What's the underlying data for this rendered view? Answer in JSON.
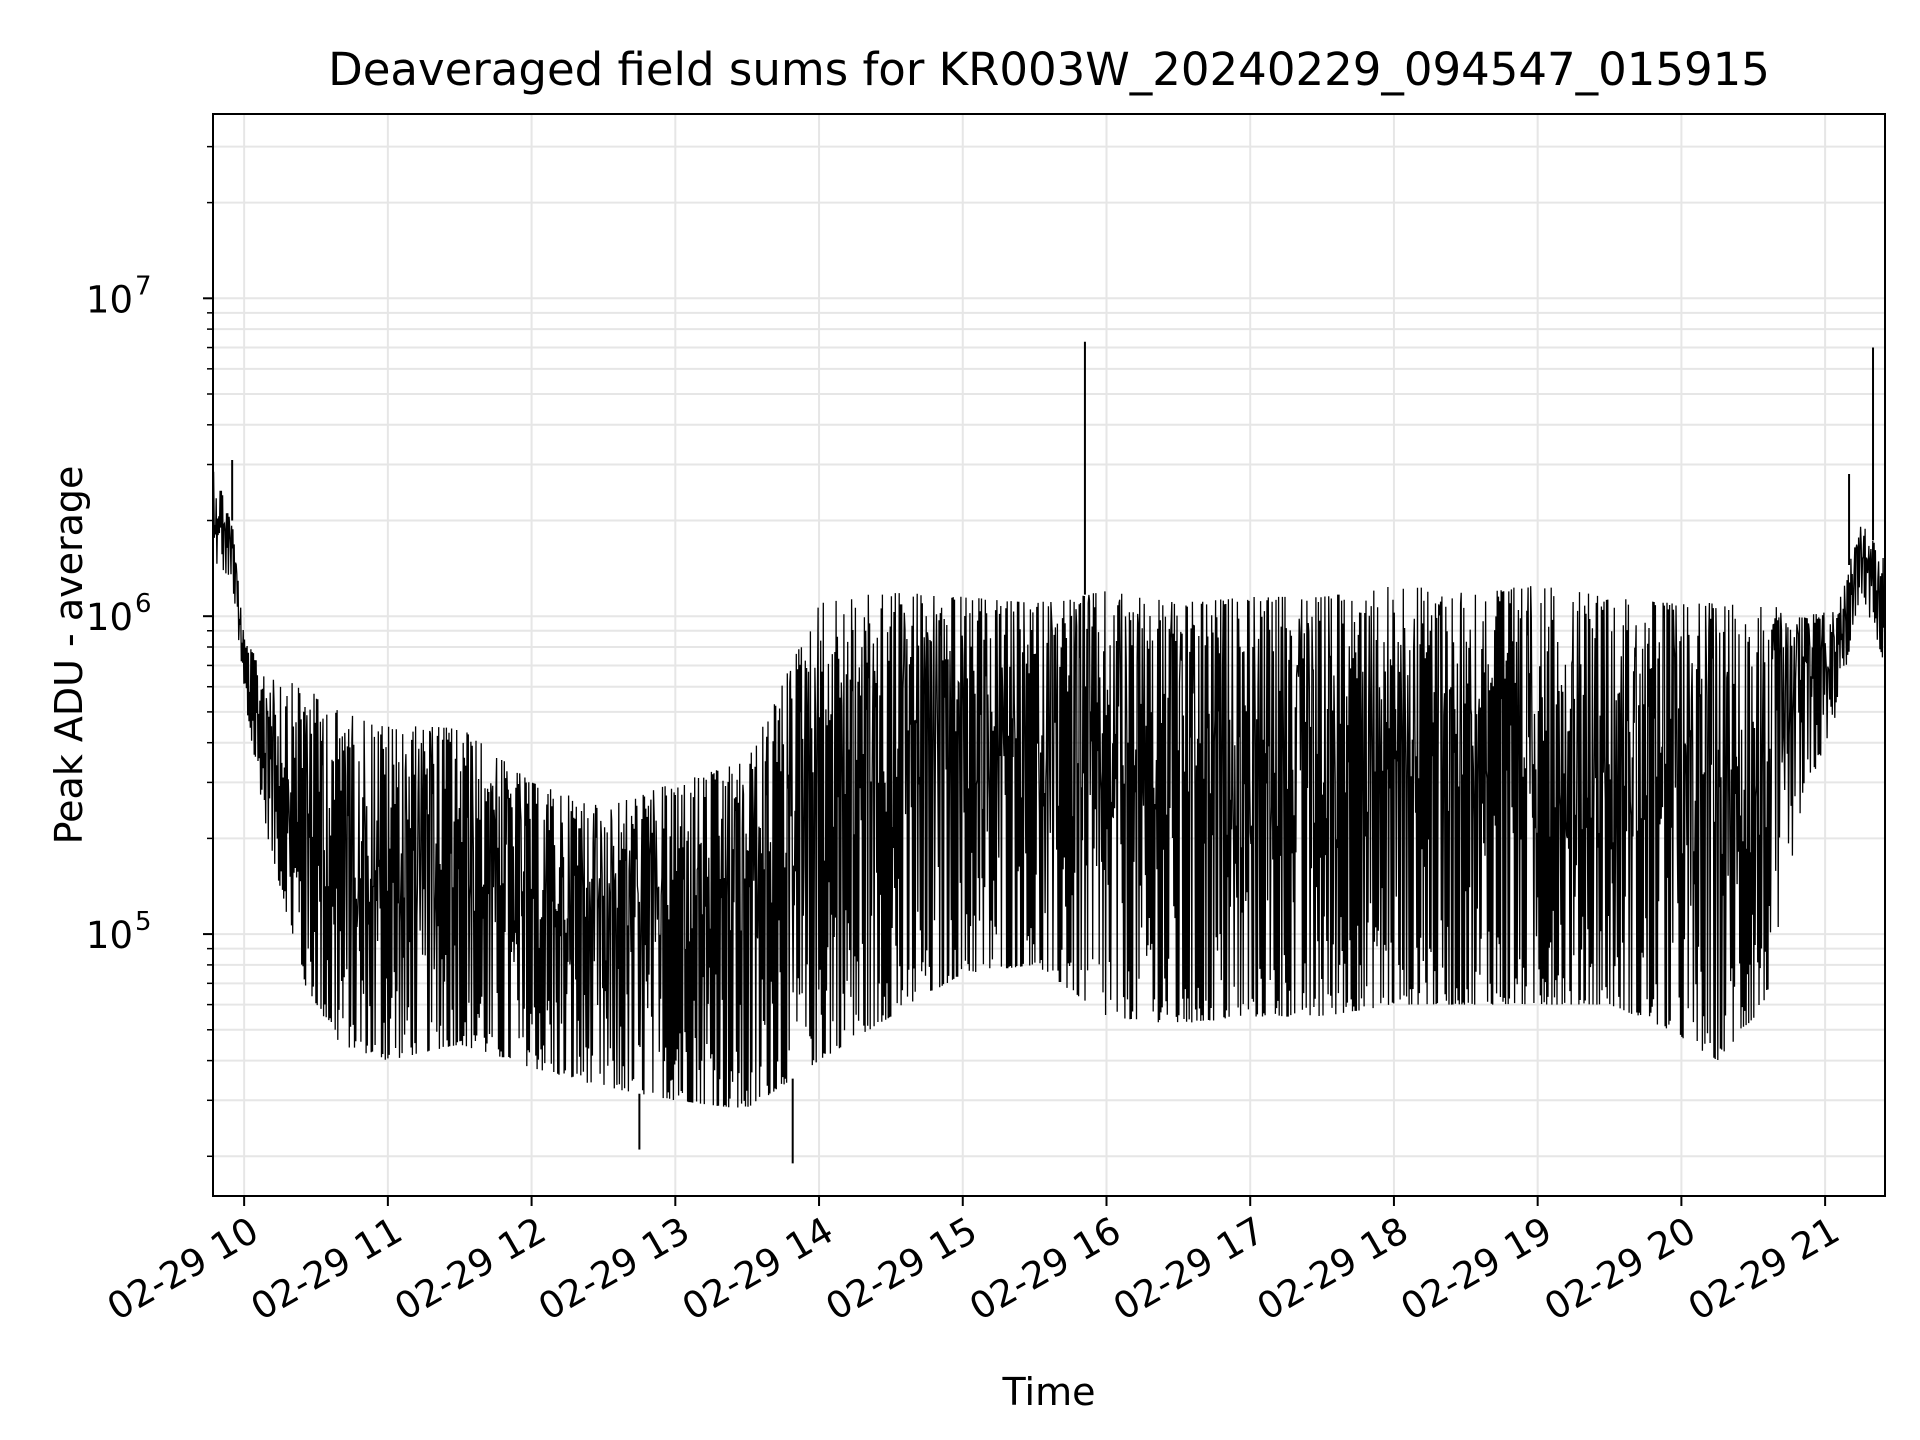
{
  "chart_data": {
    "type": "line",
    "title": "Deaveraged field sums for KR003W_20240229_094547_015915",
    "xlabel": "Time",
    "ylabel": "Peak ADU - average",
    "x_scale": "time",
    "y_scale": "log",
    "xlim": [
      "2024-02-29T09:47",
      "2024-02-29T21:25"
    ],
    "ylim": [
      15000,
      38000000
    ],
    "grid": true,
    "line_color": "#000000",
    "x_ticks": [
      "2024-02-29T10:00",
      "2024-02-29T11:00",
      "2024-02-29T12:00",
      "2024-02-29T13:00",
      "2024-02-29T14:00",
      "2024-02-29T15:00",
      "2024-02-29T16:00",
      "2024-02-29T17:00",
      "2024-02-29T18:00",
      "2024-02-29T19:00",
      "2024-02-29T20:00",
      "2024-02-29T21:00"
    ],
    "x_tick_labels": [
      "02-29 10",
      "02-29 11",
      "02-29 12",
      "02-29 13",
      "02-29 14",
      "02-29 15",
      "02-29 16",
      "02-29 17",
      "02-29 18",
      "02-29 19",
      "02-29 20",
      "02-29 21"
    ],
    "y_ticks": [
      100000,
      1000000,
      10000000
    ],
    "y_tick_labels": [
      {
        "base": "10",
        "exp": "5"
      },
      {
        "base": "10",
        "exp": "6"
      },
      {
        "base": "10",
        "exp": "7"
      }
    ],
    "series": [
      {
        "envelope": {
          "description_fields": [
            "time",
            "low",
            "high"
          ],
          "points": [
            [
              "2024-02-29T09:47",
              1500000,
              3000000
            ],
            [
              "2024-02-29T09:55",
              1300000,
              2000000
            ],
            [
              "2024-02-29T10:00",
              550000,
              850000
            ],
            [
              "2024-02-29T10:10",
              200000,
              650000
            ],
            [
              "2024-02-29T10:25",
              70000,
              600000
            ],
            [
              "2024-02-29T10:40",
              45000,
              500000
            ],
            [
              "2024-02-29T11:00",
              40000,
              450000
            ],
            [
              "2024-02-29T11:30",
              45000,
              450000
            ],
            [
              "2024-02-29T12:00",
              38000,
              300000
            ],
            [
              "2024-02-29T12:30",
              33000,
              250000
            ],
            [
              "2024-02-29T13:00",
              30000,
              300000
            ],
            [
              "2024-02-29T13:30",
              28000,
              350000
            ],
            [
              "2024-02-29T14:00",
              40000,
              1100000
            ],
            [
              "2024-02-29T14:30",
              55000,
              1200000
            ],
            [
              "2024-02-29T15:00",
              75000,
              1150000
            ],
            [
              "2024-02-29T15:30",
              80000,
              1100000
            ],
            [
              "2024-02-29T16:00",
              55000,
              1200000
            ],
            [
              "2024-02-29T16:30",
              52000,
              1100000
            ],
            [
              "2024-02-29T17:00",
              55000,
              1150000
            ],
            [
              "2024-02-29T17:30",
              55000,
              1150000
            ],
            [
              "2024-02-29T18:00",
              60000,
              1250000
            ],
            [
              "2024-02-29T18:30",
              60000,
              1200000
            ],
            [
              "2024-02-29T19:00",
              60000,
              1250000
            ],
            [
              "2024-02-29T19:30",
              60000,
              1150000
            ],
            [
              "2024-02-29T19:55",
              50000,
              1100000
            ],
            [
              "2024-02-29T20:15",
              40000,
              1100000
            ],
            [
              "2024-02-29T20:35",
              60000,
              1100000
            ],
            [
              "2024-02-29T20:50",
              250000,
              1000000
            ],
            [
              "2024-02-29T21:05",
              500000,
              1050000
            ],
            [
              "2024-02-29T21:15",
              1200000,
              2000000
            ],
            [
              "2024-02-29T21:25",
              700000,
              1500000
            ]
          ]
        },
        "spikes": [
          [
            "2024-02-29T15:51",
            7300000
          ],
          [
            "2024-02-29T21:20",
            7000000
          ],
          [
            "2024-02-29T09:55",
            3100000
          ],
          [
            "2024-02-29T21:10",
            2800000
          ],
          [
            "2024-02-29T13:49",
            19000
          ],
          [
            "2024-02-29T12:45",
            21000
          ]
        ]
      }
    ]
  }
}
